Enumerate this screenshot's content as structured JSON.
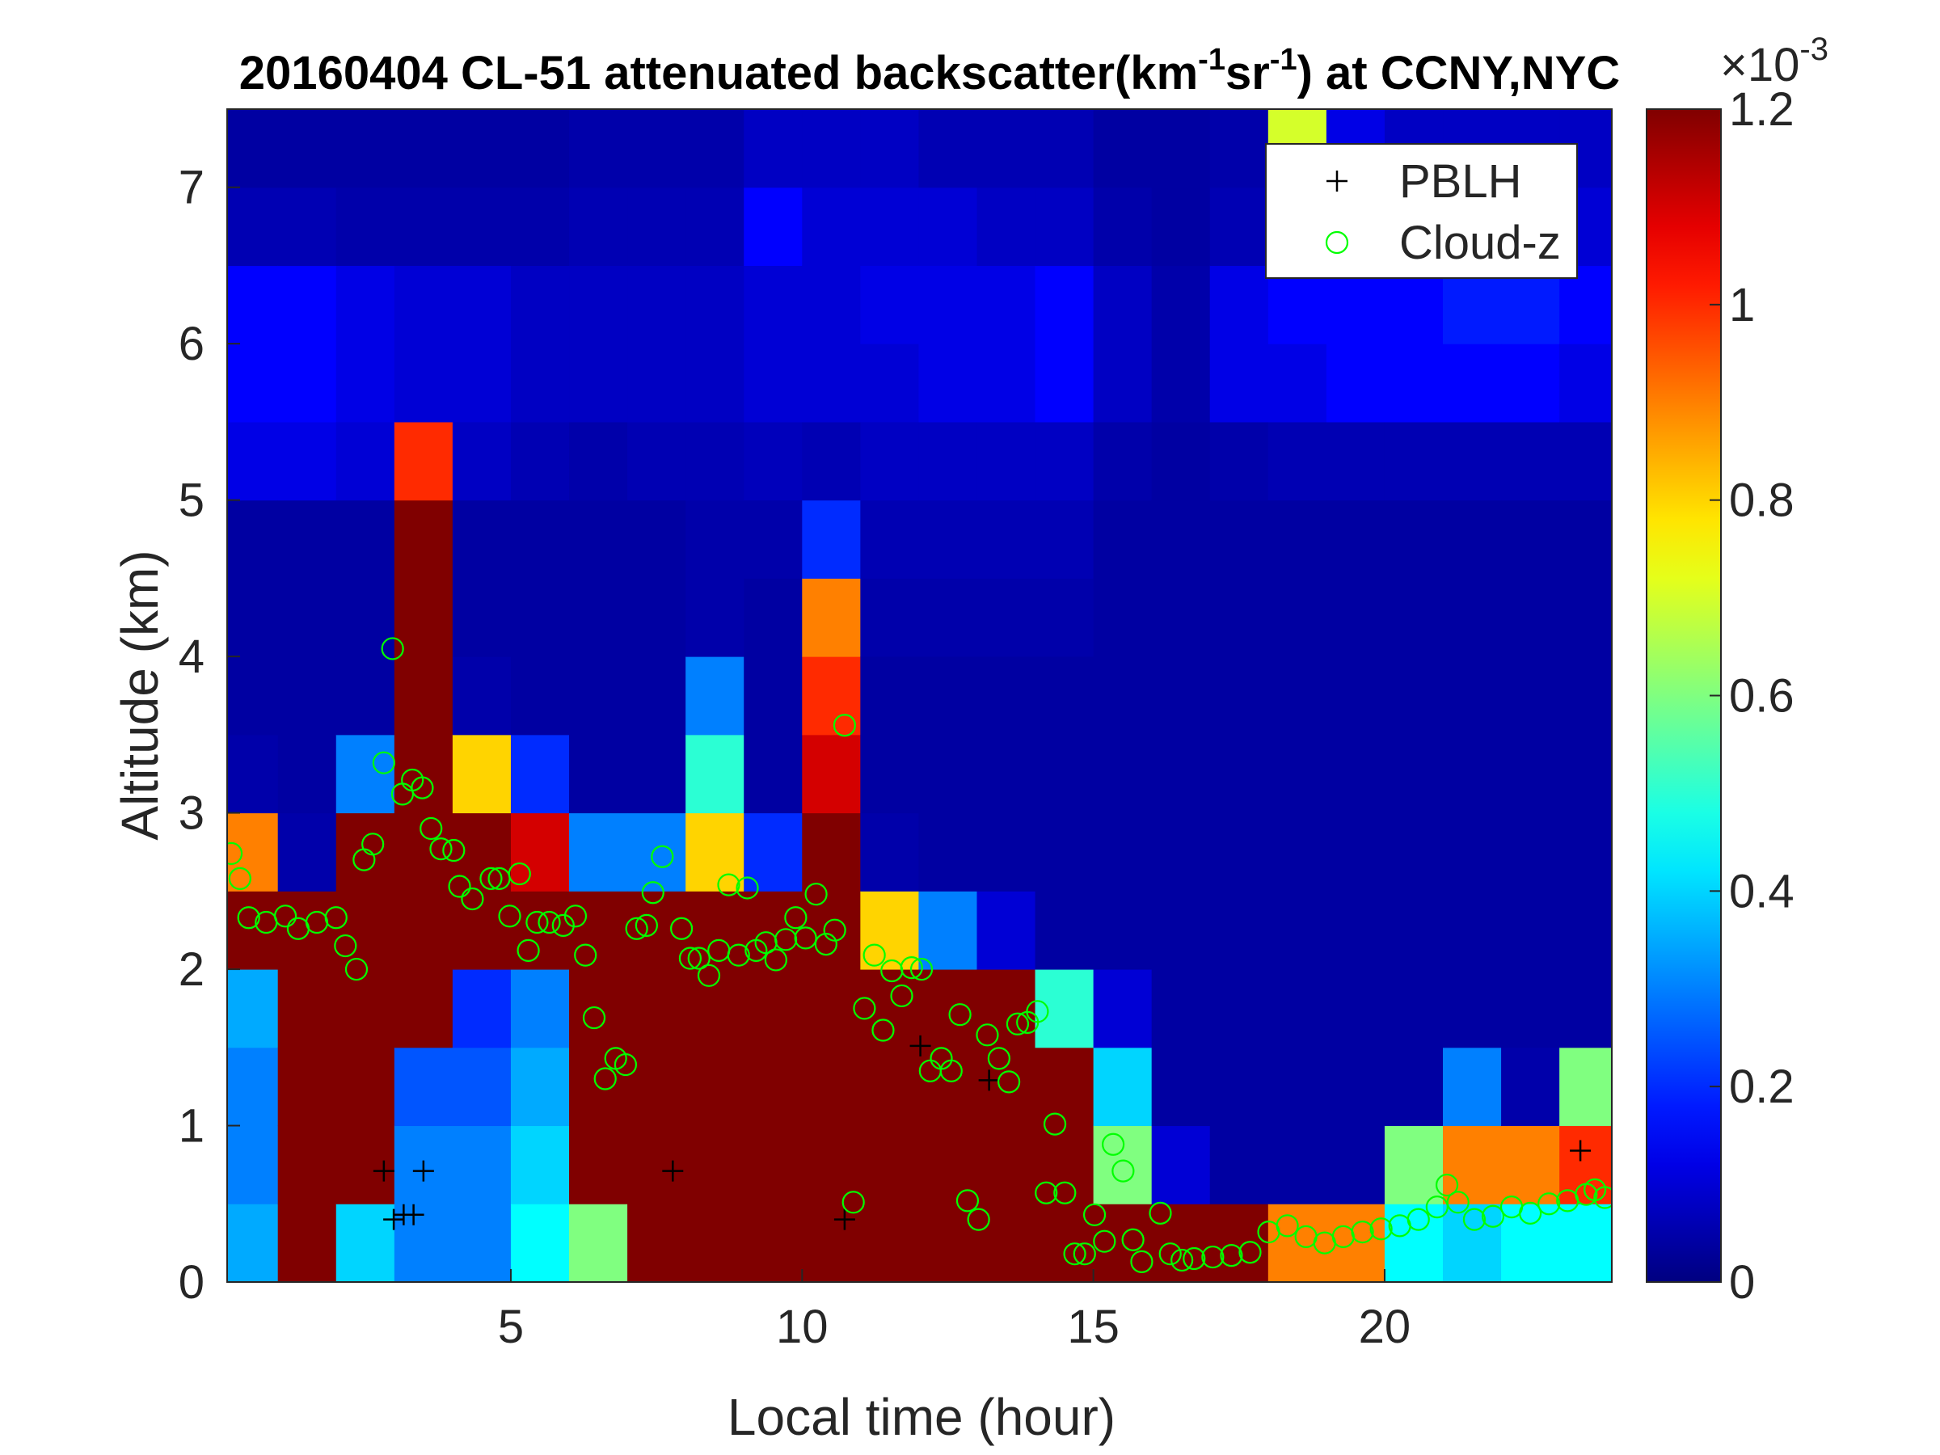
{
  "chart_data": {
    "type": "heatmap",
    "title": [
      "20160404  CL-51 attenuated backscatter(km",
      "-1",
      "sr",
      "-1",
      ") at CCNY,NYC"
    ],
    "xlabel": "Local time (hour)",
    "ylabel": "Altitude (km)",
    "xlim": [
      0.13,
      23.9
    ],
    "ylim": [
      0,
      7.5
    ],
    "xticks": [
      5,
      10,
      15,
      20
    ],
    "yticks": [
      0,
      1,
      2,
      3,
      4,
      5,
      6,
      7
    ],
    "colormap": "jet",
    "clim": [
      0,
      1.2
    ],
    "colorbar_ticks": [
      0,
      0.2,
      0.4,
      0.6,
      0.8,
      1,
      1.2
    ],
    "colorbar_exponent": {
      "base": "×10",
      "power": "-3"
    },
    "xbins": [
      0,
      1,
      2,
      3,
      4,
      5,
      6,
      7,
      8,
      9,
      10,
      11,
      12,
      13,
      14,
      15,
      16,
      17,
      18,
      19,
      20,
      21,
      22,
      23,
      24
    ],
    "ybins": [
      0,
      0.5,
      1,
      1.5,
      2,
      2.5,
      3,
      3.5,
      4,
      4.5,
      5,
      5.5,
      6,
      6.5,
      7,
      7.5
    ],
    "z": [
      [
        0.35,
        0.3,
        0.3,
        0.35,
        1.2,
        0.9,
        0.05,
        0.04,
        0.04,
        0.04,
        0.12,
        0.15,
        0.15,
        0.06,
        0.04
      ],
      [
        1.2,
        1.2,
        1.2,
        1.2,
        1.2,
        0.05,
        0.04,
        0.04,
        0.04,
        0.04,
        0.12,
        0.15,
        0.15,
        0.06,
        0.04
      ],
      [
        0.4,
        1.2,
        1.2,
        1.2,
        1.2,
        1.2,
        0.3,
        0.04,
        0.04,
        0.04,
        0.1,
        0.12,
        0.12,
        0.05,
        0.04
      ],
      [
        0.3,
        0.3,
        0.25,
        1.2,
        1.2,
        1.2,
        1.2,
        1.2,
        1.2,
        1.2,
        1,
        0.1,
        0.1,
        0.05,
        0.04
      ],
      [
        0.3,
        0.3,
        0.25,
        0.2,
        1.2,
        1.2,
        0.8,
        0.05,
        0.04,
        0.04,
        0.08,
        0.1,
        0.1,
        0.05,
        0.04
      ],
      [
        0.45,
        0.4,
        0.35,
        0.3,
        1.2,
        1.1,
        0.2,
        0.04,
        0.04,
        0.04,
        0.06,
        0.08,
        0.08,
        0.05,
        0.04
      ],
      [
        0.6,
        1.2,
        1.2,
        1.2,
        1.2,
        0.3,
        0.04,
        0.04,
        0.04,
        0.04,
        0.05,
        0.08,
        0.08,
        0.06,
        0.05
      ],
      [
        1.2,
        1.2,
        1.2,
        1.2,
        1.2,
        0.3,
        0.04,
        0.04,
        0.04,
        0.04,
        0.06,
        0.08,
        0.08,
        0.06,
        0.05
      ],
      [
        1.2,
        1.2,
        1.2,
        1.2,
        1.2,
        0.8,
        0.5,
        0.3,
        0.05,
        0.05,
        0.06,
        0.08,
        0.08,
        0.06,
        0.05
      ],
      [
        1.2,
        1.2,
        1.2,
        1.2,
        1.2,
        0.2,
        0.04,
        0.04,
        0.04,
        0.05,
        0.07,
        0.1,
        0.1,
        0.15,
        0.08
      ],
      [
        1.2,
        1.2,
        1.2,
        1.2,
        1.2,
        1.2,
        1.1,
        1,
        0.9,
        0.2,
        0.06,
        0.1,
        0.1,
        0.1,
        0.08
      ],
      [
        1.2,
        1.2,
        1.2,
        1.2,
        0.8,
        0.05,
        0.04,
        0.04,
        0.05,
        0.06,
        0.08,
        0.1,
        0.12,
        0.1,
        0.08
      ],
      [
        1.2,
        1.2,
        1.2,
        1.2,
        0.3,
        0.04,
        0.04,
        0.04,
        0.05,
        0.06,
        0.08,
        0.12,
        0.12,
        0.1,
        0.06
      ],
      [
        1.2,
        1.2,
        1.2,
        1.2,
        0.1,
        0.04,
        0.04,
        0.04,
        0.05,
        0.06,
        0.08,
        0.12,
        0.12,
        0.08,
        0.06
      ],
      [
        1.2,
        1.2,
        1.2,
        0.5,
        0.04,
        0.04,
        0.04,
        0.04,
        0.05,
        0.06,
        0.08,
        0.15,
        0.15,
        0.08,
        0.06
      ],
      [
        1.2,
        0.6,
        0.4,
        0.1,
        0.04,
        0.04,
        0.04,
        0.04,
        0.04,
        0.04,
        0.05,
        0.08,
        0.08,
        0.05,
        0.04
      ],
      [
        1.2,
        0.1,
        0.04,
        0.04,
        0.04,
        0.04,
        0.04,
        0.04,
        0.04,
        0.04,
        0.04,
        0.05,
        0.05,
        0.04,
        0.04
      ],
      [
        1.2,
        0.04,
        0.04,
        0.04,
        0.04,
        0.04,
        0.04,
        0.04,
        0.04,
        0.04,
        0.05,
        0.12,
        0.12,
        0.06,
        0.05
      ],
      [
        0.9,
        0.04,
        0.04,
        0.04,
        0.04,
        0.04,
        0.04,
        0.04,
        0.04,
        0.04,
        0.06,
        0.12,
        0.15,
        0.1,
        0.7
      ],
      [
        0.9,
        0.04,
        0.04,
        0.04,
        0.04,
        0.04,
        0.04,
        0.04,
        0.04,
        0.04,
        0.06,
        0.15,
        0.15,
        0.1,
        0.12
      ],
      [
        0.45,
        0.6,
        0.04,
        0.04,
        0.04,
        0.04,
        0.04,
        0.04,
        0.04,
        0.04,
        0.06,
        0.15,
        0.15,
        0.1,
        0.08
      ],
      [
        0.4,
        0.9,
        0.3,
        0.04,
        0.04,
        0.04,
        0.04,
        0.04,
        0.04,
        0.04,
        0.06,
        0.15,
        0.18,
        0.1,
        0.08
      ],
      [
        0.45,
        0.9,
        0.05,
        0.04,
        0.04,
        0.04,
        0.04,
        0.04,
        0.04,
        0.04,
        0.06,
        0.15,
        0.18,
        0.1,
        0.08
      ],
      [
        0.45,
        1,
        0.6,
        0.04,
        0.04,
        0.04,
        0.04,
        0.04,
        0.04,
        0.04,
        0.06,
        0.12,
        0.15,
        0.1,
        0.08
      ]
    ],
    "legend": "upper right",
    "series": [
      {
        "name": "PBLH",
        "color": "#000000",
        "marker": "+",
        "x": [
          2.82,
          2.99,
          3.16,
          3.33,
          3.5,
          7.78,
          10.73,
          12.03,
          13.21,
          23.36
        ],
        "y": [
          0.71,
          0.4,
          0.43,
          0.43,
          0.71,
          0.71,
          0.4,
          1.51,
          1.29,
          0.84
        ]
      },
      {
        "name": "Cloud-z",
        "color": "#00ff00",
        "marker": "o",
        "x": [
          0.2,
          0.35,
          0.5,
          0.8,
          1.13,
          1.35,
          1.67,
          2,
          2.16,
          2.35,
          2.48,
          2.63,
          2.82,
          2.97,
          3.14,
          3.31,
          3.48,
          3.63,
          3.8,
          4.02,
          4.12,
          4.34,
          4.66,
          4.8,
          4.98,
          5.15,
          5.3,
          5.45,
          5.66,
          5.9,
          6.11,
          6.28,
          6.43,
          6.62,
          6.8,
          6.97,
          7.16,
          7.33,
          7.44,
          7.6,
          7.93,
          8.08,
          8.23,
          8.4,
          8.57,
          8.74,
          8.91,
          9.06,
          9.21,
          9.38,
          9.55,
          9.72,
          9.89,
          10.06,
          10.24,
          10.41,
          10.56,
          10.73,
          10.88,
          11.07,
          11.24,
          11.39,
          11.54,
          11.71,
          11.88,
          12.05,
          12.2,
          12.39,
          12.56,
          12.71,
          12.84,
          13.03,
          13.18,
          13.38,
          13.55,
          13.7,
          13.87,
          14.04,
          14.19,
          14.34,
          14.51,
          14.68,
          14.85,
          15.02,
          15.19,
          15.34,
          15.51,
          15.68,
          15.83,
          16.15,
          16.32,
          16.52,
          16.73,
          17.05,
          17.37,
          17.69,
          18.01,
          18.33,
          18.65,
          18.97,
          19.29,
          19.62,
          19.94,
          20.26,
          20.58,
          20.9,
          21.07,
          21.26,
          21.54,
          21.86,
          22.18,
          22.5,
          22.82,
          23.14,
          23.46,
          23.61,
          23.78
        ],
        "y": [
          2.74,
          2.58,
          2.33,
          2.3,
          2.34,
          2.26,
          2.3,
          2.33,
          2.15,
          2,
          2.7,
          2.8,
          3.32,
          4.05,
          3.12,
          3.21,
          3.16,
          2.9,
          2.77,
          2.76,
          2.53,
          2.45,
          2.58,
          2.58,
          2.34,
          2.61,
          2.12,
          2.3,
          2.3,
          2.28,
          2.34,
          2.09,
          1.69,
          1.3,
          1.43,
          1.39,
          2.26,
          2.28,
          2.49,
          2.72,
          2.26,
          2.07,
          2.07,
          1.96,
          2.12,
          2.54,
          2.09,
          2.52,
          2.12,
          2.17,
          2.06,
          2.19,
          2.33,
          2.2,
          2.48,
          2.16,
          2.25,
          3.56,
          0.51,
          1.75,
          2.09,
          1.61,
          1.99,
          1.83,
          2.01,
          2,
          1.35,
          1.43,
          1.35,
          1.71,
          0.52,
          0.4,
          1.58,
          1.43,
          1.28,
          1.65,
          1.66,
          1.73,
          0.57,
          1.01,
          0.57,
          0.18,
          0.18,
          0.43,
          0.26,
          0.88,
          0.71,
          0.27,
          0.13,
          0.44,
          0.18,
          0.14,
          0.15,
          0.16,
          0.17,
          0.19,
          0.32,
          0.36,
          0.29,
          0.25,
          0.29,
          0.32,
          0.34,
          0.36,
          0.4,
          0.48,
          0.62,
          0.51,
          0.4,
          0.42,
          0.48,
          0.44,
          0.5,
          0.52,
          0.56,
          0.59,
          0.54
        ]
      }
    ]
  }
}
